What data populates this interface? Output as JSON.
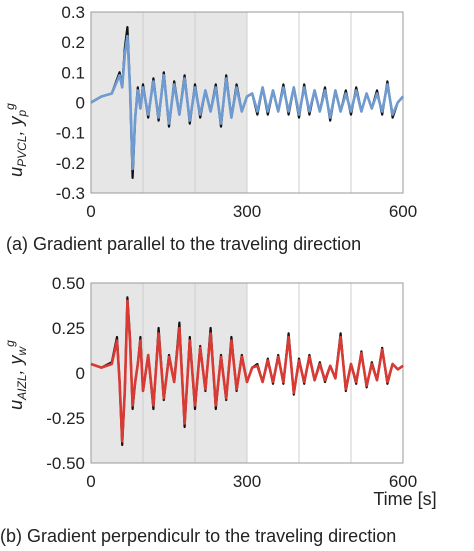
{
  "chart_data": [
    {
      "type": "line",
      "caption": "(a) Gradient parallel to the traveling direction",
      "ylabel": {
        "main": "u",
        "sub": "PVCL",
        "sep": ", y",
        "sub2": "p",
        "sup2": "g"
      },
      "xlabel": "",
      "xlim": [
        0,
        600
      ],
      "ylim": [
        -0.3,
        0.3
      ],
      "x_ticks": [
        "0",
        "300",
        "600"
      ],
      "y_ticks": [
        "0.3",
        "0.2",
        "0.1",
        "0",
        "-0.1",
        "-0.2",
        "-0.3"
      ],
      "y_tick_values": [
        0.3,
        0.2,
        0.1,
        0,
        -0.1,
        -0.2,
        -0.3
      ],
      "shaded_region": [
        0,
        300
      ],
      "grid": "vertical",
      "series": [
        {
          "color": "#111111",
          "x": [
            0,
            20,
            40,
            55,
            60,
            65,
            70,
            75,
            80,
            85,
            90,
            95,
            100,
            110,
            120,
            130,
            140,
            150,
            160,
            170,
            180,
            190,
            200,
            210,
            220,
            230,
            240,
            250,
            260,
            270,
            280,
            290,
            300,
            310,
            320,
            330,
            340,
            350,
            360,
            370,
            380,
            390,
            400,
            410,
            420,
            430,
            440,
            450,
            460,
            470,
            480,
            490,
            500,
            510,
            520,
            530,
            540,
            550,
            560,
            570,
            580,
            590,
            600
          ],
          "values": [
            0.0,
            0.02,
            0.03,
            0.1,
            0.05,
            0.18,
            0.25,
            0.05,
            -0.25,
            -0.05,
            0.05,
            -0.02,
            0.06,
            -0.05,
            0.08,
            -0.06,
            0.1,
            -0.08,
            0.07,
            -0.04,
            0.09,
            -0.07,
            0.06,
            -0.05,
            0.04,
            -0.03,
            0.06,
            -0.08,
            0.09,
            -0.05,
            0.06,
            -0.03,
            0.02,
            0.03,
            -0.04,
            0.05,
            -0.04,
            0.04,
            -0.03,
            0.06,
            -0.04,
            0.05,
            -0.05,
            0.06,
            -0.04,
            0.04,
            -0.03,
            0.05,
            -0.06,
            0.04,
            -0.03,
            0.04,
            -0.04,
            0.05,
            -0.03,
            0.03,
            -0.02,
            0.04,
            -0.04,
            0.07,
            -0.05,
            0.0,
            0.02
          ]
        },
        {
          "color": "#6f9bd1",
          "x": [
            0,
            20,
            40,
            55,
            60,
            65,
            70,
            75,
            80,
            85,
            90,
            95,
            100,
            110,
            120,
            130,
            140,
            150,
            160,
            170,
            180,
            190,
            200,
            210,
            220,
            230,
            240,
            250,
            260,
            270,
            280,
            290,
            300,
            310,
            320,
            330,
            340,
            350,
            360,
            370,
            380,
            390,
            400,
            410,
            420,
            430,
            440,
            450,
            460,
            470,
            480,
            490,
            500,
            510,
            520,
            530,
            540,
            550,
            560,
            570,
            580,
            590,
            600
          ],
          "values": [
            0.0,
            0.02,
            0.03,
            0.09,
            0.05,
            0.16,
            0.22,
            0.05,
            -0.22,
            -0.05,
            0.04,
            -0.02,
            0.05,
            -0.04,
            0.07,
            -0.05,
            0.09,
            -0.07,
            0.06,
            -0.04,
            0.08,
            -0.06,
            0.05,
            -0.04,
            0.04,
            -0.03,
            0.05,
            -0.07,
            0.08,
            -0.05,
            0.05,
            -0.03,
            0.02,
            0.03,
            -0.03,
            0.05,
            -0.03,
            0.04,
            -0.03,
            0.05,
            -0.03,
            0.05,
            -0.04,
            0.05,
            -0.03,
            0.04,
            -0.03,
            0.04,
            -0.05,
            0.04,
            -0.03,
            0.03,
            -0.03,
            0.04,
            -0.03,
            0.03,
            -0.02,
            0.03,
            -0.03,
            0.06,
            -0.04,
            0.0,
            0.02
          ]
        }
      ]
    },
    {
      "type": "line",
      "caption": "(b) Gradient perpendiculr to the traveling direction",
      "ylabel": {
        "main": "u",
        "sub": "AIZL",
        "sep": ", y",
        "sub2": "w",
        "sup2": "g"
      },
      "xlabel": "Time [s]",
      "xlim": [
        0,
        600
      ],
      "ylim": [
        -0.5,
        0.5
      ],
      "x_ticks": [
        "0",
        "300",
        "600"
      ],
      "y_ticks": [
        "0.50",
        "0.25",
        "0",
        "-0.25",
        "-0.50"
      ],
      "y_tick_values": [
        0.5,
        0.25,
        0,
        -0.25,
        -0.5
      ],
      "shaded_region": [
        0,
        300
      ],
      "grid": "vertical",
      "series": [
        {
          "color": "#111111",
          "x": [
            0,
            20,
            40,
            50,
            55,
            60,
            65,
            70,
            75,
            80,
            85,
            90,
            95,
            100,
            110,
            120,
            130,
            140,
            150,
            160,
            170,
            180,
            190,
            200,
            210,
            220,
            230,
            240,
            250,
            260,
            270,
            280,
            290,
            300,
            310,
            320,
            330,
            340,
            350,
            360,
            370,
            380,
            390,
            400,
            410,
            420,
            430,
            440,
            450,
            460,
            470,
            480,
            490,
            500,
            510,
            520,
            530,
            540,
            550,
            560,
            570,
            580,
            590,
            600
          ],
          "values": [
            0.05,
            0.03,
            0.06,
            0.2,
            -0.05,
            -0.4,
            -0.1,
            0.42,
            0.2,
            -0.2,
            -0.05,
            0.05,
            0.2,
            -0.1,
            0.1,
            -0.2,
            0.25,
            -0.15,
            0.1,
            -0.05,
            0.28,
            -0.3,
            0.2,
            -0.2,
            0.15,
            -0.1,
            0.25,
            -0.2,
            0.1,
            -0.15,
            0.2,
            -0.1,
            0.1,
            -0.05,
            0.03,
            0.05,
            -0.05,
            0.08,
            -0.06,
            0.1,
            -0.06,
            0.22,
            -0.12,
            0.08,
            -0.06,
            0.1,
            -0.04,
            0.06,
            -0.05,
            0.04,
            -0.03,
            0.22,
            -0.1,
            0.05,
            -0.06,
            0.12,
            -0.08,
            0.06,
            -0.04,
            0.14,
            -0.06,
            0.05,
            0.02,
            0.04
          ]
        },
        {
          "color": "#d93a34",
          "x": [
            0,
            20,
            40,
            50,
            55,
            60,
            65,
            70,
            75,
            80,
            85,
            90,
            95,
            100,
            110,
            120,
            130,
            140,
            150,
            160,
            170,
            180,
            190,
            200,
            210,
            220,
            230,
            240,
            250,
            260,
            270,
            280,
            290,
            300,
            310,
            320,
            330,
            340,
            350,
            360,
            370,
            380,
            390,
            400,
            410,
            420,
            430,
            440,
            450,
            460,
            470,
            480,
            490,
            500,
            510,
            520,
            530,
            540,
            550,
            560,
            570,
            580,
            590,
            600
          ],
          "values": [
            0.05,
            0.03,
            0.05,
            0.18,
            -0.05,
            -0.38,
            -0.1,
            0.4,
            0.18,
            -0.18,
            -0.05,
            0.05,
            0.18,
            -0.1,
            0.1,
            -0.18,
            0.22,
            -0.14,
            0.09,
            -0.05,
            0.25,
            -0.28,
            0.18,
            -0.18,
            0.14,
            -0.09,
            0.22,
            -0.18,
            0.09,
            -0.14,
            0.18,
            -0.09,
            0.09,
            -0.05,
            0.03,
            0.04,
            -0.05,
            0.07,
            -0.05,
            0.09,
            -0.05,
            0.2,
            -0.11,
            0.07,
            -0.05,
            0.09,
            -0.04,
            0.05,
            -0.04,
            0.04,
            -0.03,
            0.2,
            -0.09,
            0.05,
            -0.05,
            0.11,
            -0.07,
            0.05,
            -0.04,
            0.13,
            -0.05,
            0.05,
            0.02,
            0.04
          ]
        }
      ]
    }
  ],
  "colors": {
    "shade": "#e6e6e6",
    "frame": "#9a9a9a",
    "grid": "#cfcfcf"
  }
}
